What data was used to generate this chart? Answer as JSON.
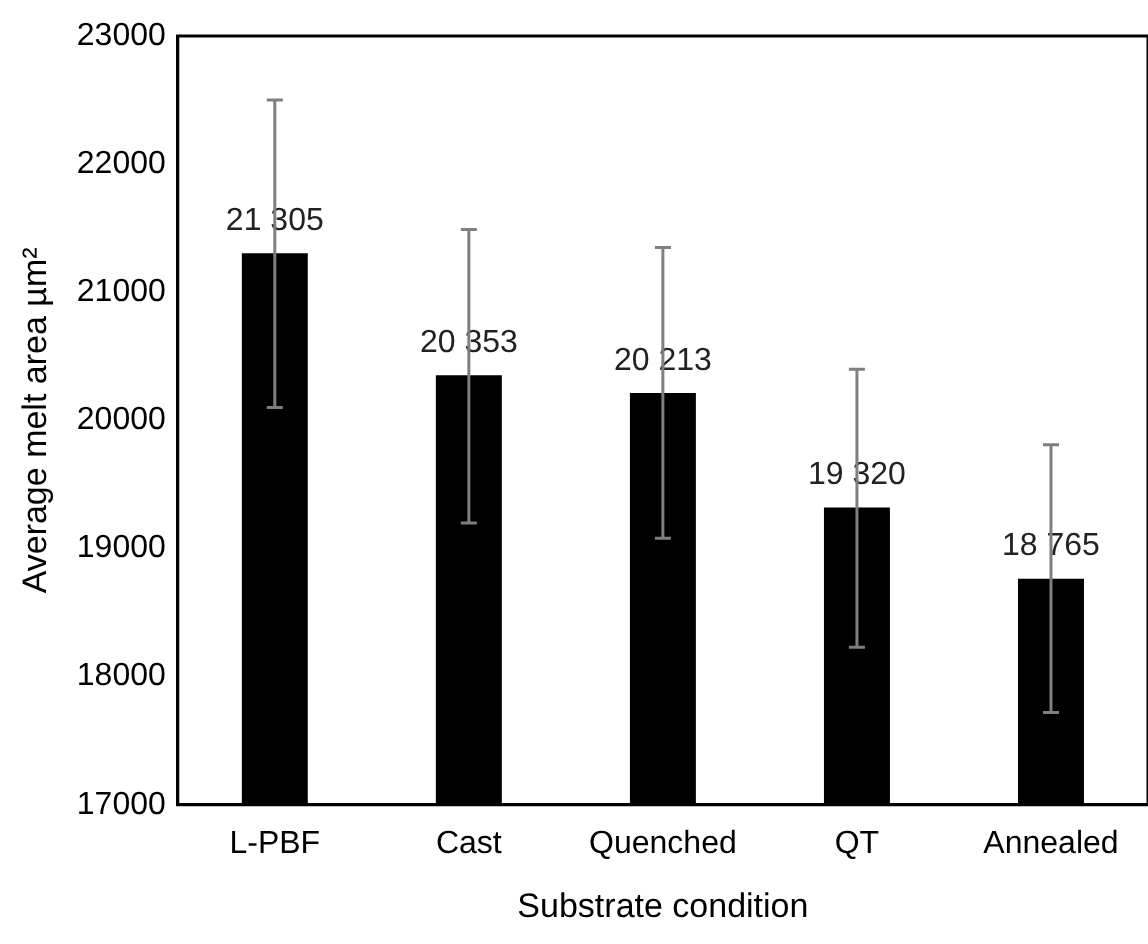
{
  "chart_data": {
    "type": "bar",
    "xlabel": "Substrate condition",
    "ylabel": "Average melt area µm²",
    "categories": [
      "L-PBF",
      "Cast",
      "Quenched",
      "QT",
      "Annealed"
    ],
    "values": [
      21305,
      20353,
      20213,
      19320,
      18765
    ],
    "value_labels": [
      "21 305",
      "20 353",
      "20 213",
      "19 320",
      "18 765"
    ],
    "errors": [
      [
        20100,
        22500
      ],
      [
        19200,
        21490
      ],
      [
        19080,
        21350
      ],
      [
        18230,
        20400
      ],
      [
        17720,
        19810
      ]
    ],
    "color": "#000000",
    "ylim": [
      17000,
      23000
    ],
    "yticks": [
      17000,
      18000,
      19000,
      20000,
      21000,
      22000,
      23000
    ],
    "grid": false,
    "legend": false
  }
}
